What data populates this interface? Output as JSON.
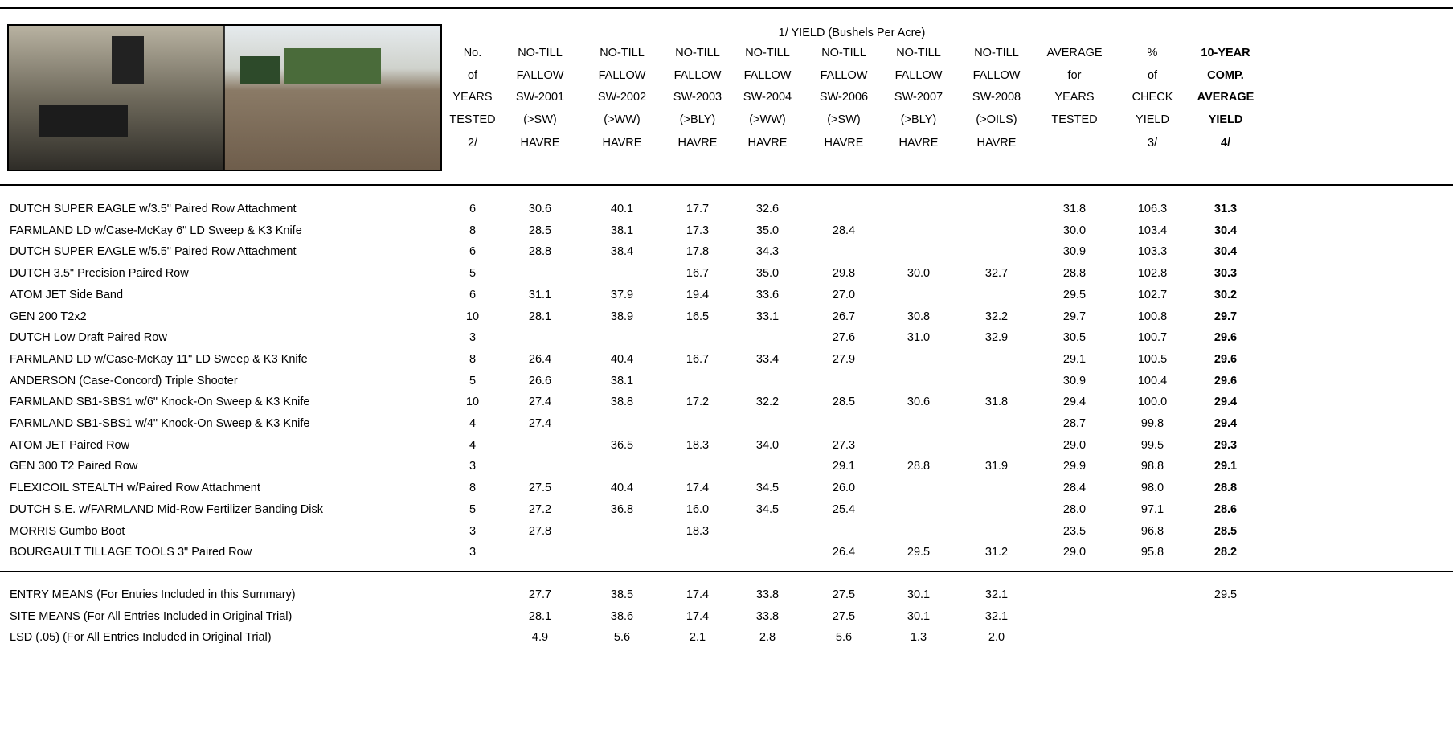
{
  "header": {
    "super_title": "1/ YIELD (Bushels Per Acre)",
    "columns": [
      {
        "lines": [
          "No.",
          "of",
          "YEARS",
          "TESTED",
          "2/"
        ]
      },
      {
        "lines": [
          "NO-TILL",
          "FALLOW",
          "SW-2001",
          "(>SW)",
          "HAVRE"
        ]
      },
      {
        "lines": [
          "NO-TILL",
          "FALLOW",
          "SW-2002",
          "(>WW)",
          "HAVRE"
        ]
      },
      {
        "lines": [
          "NO-TILL",
          "FALLOW",
          "SW-2003",
          "(>BLY)",
          "HAVRE"
        ]
      },
      {
        "lines": [
          "NO-TILL",
          "FALLOW",
          "SW-2004",
          "(>WW)",
          "HAVRE"
        ]
      },
      {
        "lines": [
          "NO-TILL",
          "FALLOW",
          "SW-2006",
          "(>SW)",
          "HAVRE"
        ]
      },
      {
        "lines": [
          "NO-TILL",
          "FALLOW",
          "SW-2007",
          "(>BLY)",
          "HAVRE"
        ]
      },
      {
        "lines": [
          "NO-TILL",
          "FALLOW",
          "SW-2008",
          "(>OILS)",
          "HAVRE"
        ]
      },
      {
        "lines": [
          "AVERAGE",
          "for",
          "YEARS",
          "TESTED"
        ]
      },
      {
        "lines": [
          "%",
          "of",
          "CHECK",
          "YIELD",
          "3/"
        ]
      },
      {
        "lines": [
          "10-YEAR",
          "COMP.",
          "AVERAGE",
          "YIELD",
          "4/"
        ]
      }
    ]
  },
  "table": {
    "rows": [
      {
        "name": "DUTCH SUPER EAGLE w/3.5\" Paired Row Attachment",
        "cells": [
          "6",
          "30.6",
          "40.1",
          "17.7",
          "32.6",
          null,
          null,
          null,
          "31.8",
          "106.3",
          "31.3"
        ]
      },
      {
        "name": "FARMLAND LD w/Case-McKay 6\" LD Sweep & K3 Knife",
        "cells": [
          "8",
          "28.5",
          "38.1",
          "17.3",
          "35.0",
          "28.4",
          null,
          null,
          "30.0",
          "103.4",
          "30.4"
        ]
      },
      {
        "name": "DUTCH SUPER EAGLE w/5.5\" Paired Row Attachment",
        "cells": [
          "6",
          "28.8",
          "38.4",
          "17.8",
          "34.3",
          null,
          null,
          null,
          "30.9",
          "103.3",
          "30.4"
        ]
      },
      {
        "name": "DUTCH 3.5\" Precision Paired Row",
        "cells": [
          "5",
          null,
          null,
          "16.7",
          "35.0",
          "29.8",
          "30.0",
          "32.7",
          "28.8",
          "102.8",
          "30.3"
        ]
      },
      {
        "name": "ATOM JET Side Band",
        "cells": [
          "6",
          "31.1",
          "37.9",
          "19.4",
          "33.6",
          "27.0",
          null,
          null,
          "29.5",
          "102.7",
          "30.2"
        ]
      },
      {
        "name": "GEN 200 T2x2",
        "cells": [
          "10",
          "28.1",
          "38.9",
          "16.5",
          "33.1",
          "26.7",
          "30.8",
          "32.2",
          "29.7",
          "100.8",
          "29.7"
        ]
      },
      {
        "name": "DUTCH Low Draft Paired Row",
        "cells": [
          "3",
          null,
          null,
          null,
          null,
          "27.6",
          "31.0",
          "32.9",
          "30.5",
          "100.7",
          "29.6"
        ]
      },
      {
        "name": "FARMLAND LD w/Case-McKay 11\" LD Sweep & K3 Knife",
        "cells": [
          "8",
          "26.4",
          "40.4",
          "16.7",
          "33.4",
          "27.9",
          null,
          null,
          "29.1",
          "100.5",
          "29.6"
        ]
      },
      {
        "name": "ANDERSON (Case-Concord) Triple Shooter",
        "cells": [
          "5",
          "26.6",
          "38.1",
          null,
          null,
          null,
          null,
          null,
          "30.9",
          "100.4",
          "29.6"
        ]
      },
      {
        "name": "FARMLAND SB1-SBS1 w/6\" Knock-On Sweep & K3 Knife",
        "cells": [
          "10",
          "27.4",
          "38.8",
          "17.2",
          "32.2",
          "28.5",
          "30.6",
          "31.8",
          "29.4",
          "100.0",
          "29.4"
        ]
      },
      {
        "name": "FARMLAND SB1-SBS1 w/4\" Knock-On Sweep & K3 Knife",
        "cells": [
          "4",
          "27.4",
          null,
          null,
          null,
          null,
          null,
          null,
          "28.7",
          "99.8",
          "29.4"
        ]
      },
      {
        "name": "ATOM JET Paired Row",
        "cells": [
          "4",
          null,
          "36.5",
          "18.3",
          "34.0",
          "27.3",
          null,
          null,
          "29.0",
          "99.5",
          "29.3"
        ]
      },
      {
        "name": "GEN 300 T2 Paired Row",
        "cells": [
          "3",
          null,
          null,
          null,
          null,
          "29.1",
          "28.8",
          "31.9",
          "29.9",
          "98.8",
          "29.1"
        ]
      },
      {
        "name": "FLEXICOIL STEALTH w/Paired Row Attachment",
        "cells": [
          "8",
          "27.5",
          "40.4",
          "17.4",
          "34.5",
          "26.0",
          null,
          null,
          "28.4",
          "98.0",
          "28.8"
        ]
      },
      {
        "name": "DUTCH S.E. w/FARMLAND Mid-Row Fertilizer Banding Disk",
        "cells": [
          "5",
          "27.2",
          "36.8",
          "16.0",
          "34.5",
          "25.4",
          null,
          null,
          "28.0",
          "97.1",
          "28.6"
        ]
      },
      {
        "name": "MORRIS Gumbo Boot",
        "cells": [
          "3",
          "27.8",
          null,
          "18.3",
          null,
          null,
          null,
          null,
          "23.5",
          "96.8",
          "28.5"
        ]
      },
      {
        "name": "BOURGAULT TILLAGE TOOLS 3\" Paired Row",
        "cells": [
          "3",
          null,
          null,
          null,
          null,
          "26.4",
          "29.5",
          "31.2",
          "29.0",
          "95.8",
          "28.2"
        ]
      }
    ],
    "summary_rows": [
      {
        "name": "ENTRY MEANS (For Entries Included in this Summary)",
        "cells": [
          null,
          "27.7",
          "38.5",
          "17.4",
          "33.8",
          "27.5",
          "30.1",
          "32.1",
          null,
          null,
          "29.5"
        ]
      },
      {
        "name": "SITE MEANS (For All Entries Included in Original Trial)",
        "cells": [
          null,
          "28.1",
          "38.6",
          "17.4",
          "33.8",
          "27.5",
          "30.1",
          "32.1",
          null,
          null,
          null
        ]
      },
      {
        "name": "LSD (.05) (For All Entries Included in Original Trial)",
        "cells": [
          null,
          "4.9",
          "5.6",
          "2.1",
          "2.8",
          "5.6",
          "1.3",
          "2.0",
          null,
          null,
          null
        ]
      }
    ]
  }
}
